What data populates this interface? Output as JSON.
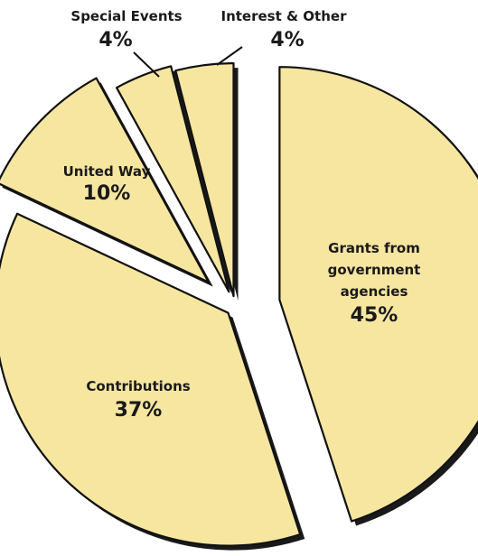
{
  "chart_data": {
    "type": "pie",
    "style": "exploded",
    "slice_color": "#f6e6a0",
    "shadow_color": "#1a1a1a",
    "slices": [
      {
        "label": "Grants from government agencies",
        "label_lines": [
          "Grants from",
          "government",
          "agencies"
        ],
        "value": 45,
        "value_label": "45%"
      },
      {
        "label": "Contributions",
        "label_lines": [
          "Contributions"
        ],
        "value": 37,
        "value_label": "37%"
      },
      {
        "label": "United Way",
        "label_lines": [
          "United Way"
        ],
        "value": 10,
        "value_label": "10%"
      },
      {
        "label": "Special Events",
        "label_lines": [
          "Special Events"
        ],
        "value": 4,
        "value_label": "4%"
      },
      {
        "label": "Interest & Other",
        "label_lines": [
          "Interest & Other"
        ],
        "value": 4,
        "value_label": "4%"
      }
    ]
  }
}
